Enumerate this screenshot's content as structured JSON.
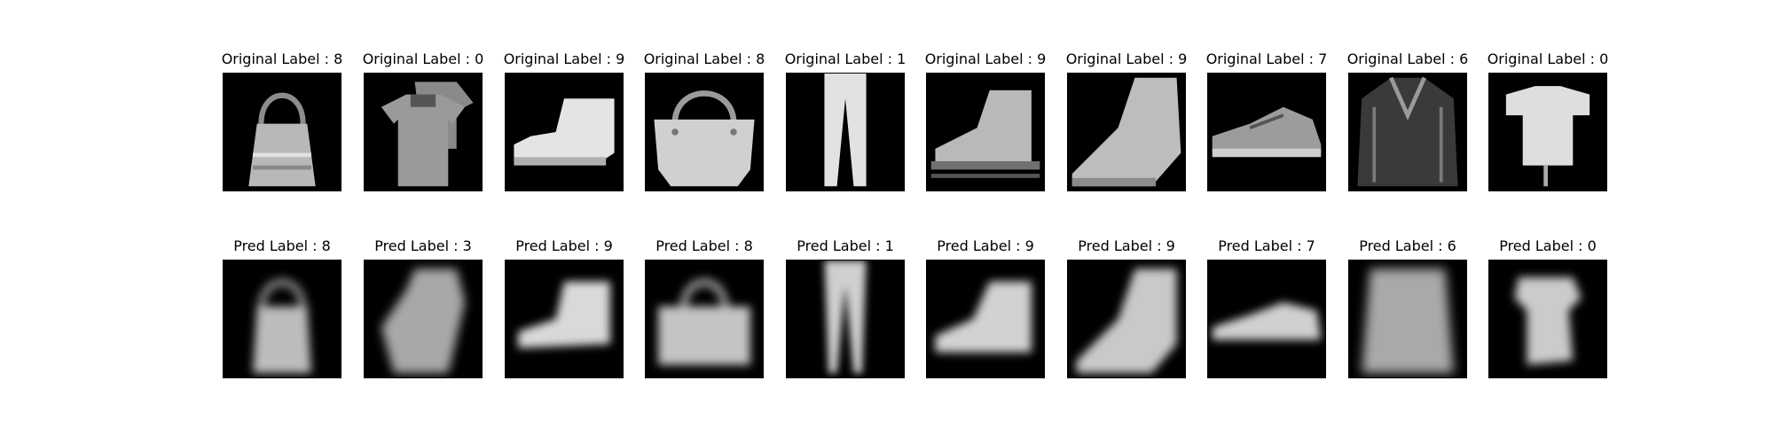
{
  "rows": [
    {
      "label_prefix": "Original Label : ",
      "items": [
        {
          "title": "Original Label : 8",
          "icon": "handbag-icon"
        },
        {
          "title": "Original Label : 0",
          "icon": "tshirt-icon"
        },
        {
          "title": "Original Label : 9",
          "icon": "ankle-boot-icon"
        },
        {
          "title": "Original Label : 8",
          "icon": "handbag-icon"
        },
        {
          "title": "Original Label : 1",
          "icon": "trouser-icon"
        },
        {
          "title": "Original Label : 9",
          "icon": "ankle-boot-icon"
        },
        {
          "title": "Original Label : 9",
          "icon": "ankle-boot-icon"
        },
        {
          "title": "Original Label : 7",
          "icon": "sneaker-icon"
        },
        {
          "title": "Original Label : 6",
          "icon": "shirt-icon"
        },
        {
          "title": "Original Label : 0",
          "icon": "tshirt-icon"
        }
      ]
    },
    {
      "label_prefix": "Pred Label : ",
      "items": [
        {
          "title": "Pred Label : 8",
          "icon": "handbag-icon"
        },
        {
          "title": "Pred Label : 3",
          "icon": "dress-icon"
        },
        {
          "title": "Pred Label : 9",
          "icon": "ankle-boot-icon"
        },
        {
          "title": "Pred Label : 8",
          "icon": "handbag-icon"
        },
        {
          "title": "Pred Label : 1",
          "icon": "trouser-icon"
        },
        {
          "title": "Pred Label : 9",
          "icon": "ankle-boot-icon"
        },
        {
          "title": "Pred Label : 9",
          "icon": "ankle-boot-icon"
        },
        {
          "title": "Pred Label : 7",
          "icon": "sneaker-icon"
        },
        {
          "title": "Pred Label : 6",
          "icon": "shirt-icon"
        },
        {
          "title": "Pred Label : 0",
          "icon": "tshirt-icon"
        }
      ]
    }
  ],
  "colors": {
    "background": "#ffffff",
    "image_bg": "#000000",
    "item_gray": "#bdbdbd"
  }
}
